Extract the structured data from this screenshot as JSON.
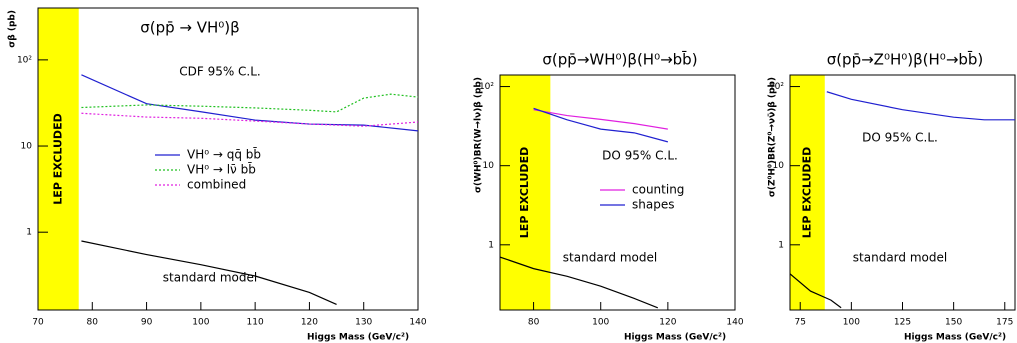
{
  "chart_data": [
    {
      "type": "line",
      "title": "σ(pp̄ → VH⁰)β",
      "y_label": "σβ (pb)",
      "x_label": "Higgs Mass (GeV/c²)",
      "annotations": [
        "CDF 95% C.L.",
        "standard model"
      ],
      "excluded_region": [
        70,
        77.5
      ],
      "excluded_label": "LEP EXCLUDED",
      "log_y": true,
      "xlim": [
        70,
        140
      ],
      "ylim": [
        0.125,
        400
      ],
      "xticks": [
        70,
        80,
        90,
        100,
        110,
        120,
        130,
        140
      ],
      "yticks": [
        1,
        10,
        {
          "value": 100,
          "label": "10²"
        }
      ],
      "series": [
        {
          "name": "VH⁰ → qq̄ bb̄",
          "color": "#2020d0",
          "dash": "solid",
          "x": [
            78,
            90,
            100,
            110,
            120,
            130,
            140
          ],
          "values": [
            67,
            31,
            25,
            20,
            18,
            17.5,
            15
          ]
        },
        {
          "name": "VH⁰ → lν̄ bb̄",
          "color": "#20c020",
          "dash": "dotted",
          "x": [
            78,
            90,
            100,
            110,
            120,
            125,
            130,
            135,
            140
          ],
          "values": [
            28,
            30,
            29,
            27.7,
            26,
            24.9,
            36,
            40,
            37
          ]
        },
        {
          "name": "combined",
          "color": "#e020e0",
          "dash": "dotted",
          "x": [
            78,
            90,
            100,
            110,
            120,
            130,
            140
          ],
          "values": [
            24,
            21.7,
            21,
            19.5,
            18,
            17,
            19
          ]
        },
        {
          "color": "#000000",
          "dash": "solid",
          "x": [
            78,
            90,
            100,
            110,
            120,
            125
          ],
          "values": [
            0.79,
            0.55,
            0.42,
            0.31,
            0.2,
            0.145
          ]
        }
      ]
    },
    {
      "type": "line",
      "title": "σ(pp̄→WH⁰)β(H⁰→bb̄)",
      "y_label": "σ(WH⁰)BR(W→lν)β (pb)",
      "x_label": "Higgs Mass (GeV/c²)",
      "annotations": [
        "DO 95% C.L.",
        "standard model"
      ],
      "excluded_region": [
        70,
        85
      ],
      "excluded_label": "LEP EXCLUDED",
      "log_y": true,
      "xlim": [
        70,
        140
      ],
      "ylim": [
        0.15,
        140
      ],
      "xticks": [
        80,
        100,
        120,
        140
      ],
      "yticks": [
        1,
        10,
        {
          "value": 100,
          "label": "10²"
        }
      ],
      "series": [
        {
          "name": "counting",
          "color": "#e020e0",
          "dash": "solid",
          "x": [
            80,
            90,
            100,
            110,
            120
          ],
          "values": [
            51,
            43,
            38.5,
            34,
            29
          ]
        },
        {
          "name": "shapes",
          "color": "#2020d0",
          "dash": "solid",
          "x": [
            80,
            90,
            100,
            110,
            120
          ],
          "values": [
            53,
            38,
            29,
            26,
            20
          ]
        },
        {
          "color": "#000000",
          "dash": "solid",
          "x": [
            70,
            80,
            90,
            100,
            110,
            117
          ],
          "values": [
            0.7,
            0.5,
            0.4,
            0.3,
            0.21,
            0.16
          ]
        }
      ]
    },
    {
      "type": "line",
      "title": "σ(pp̄→Z⁰H⁰)β(H⁰→bb̄)",
      "y_label": "σ(Z⁰H⁰)BR(Z⁰→νν̄)β (pb)",
      "x_label": "Higgs Mass (GeV/c²)",
      "annotations": [
        "DO 95% C.L.",
        "standard model"
      ],
      "excluded_region": [
        70,
        87
      ],
      "excluded_label": "LEP EXCLUDED",
      "log_y": true,
      "xlim": [
        70,
        180
      ],
      "ylim": [
        0.15,
        140
      ],
      "xticks": [
        75,
        100,
        125,
        150,
        175
      ],
      "yticks": [
        1,
        10,
        {
          "value": 100,
          "label": "10²"
        }
      ],
      "series": [
        {
          "color": "#2020d0",
          "dash": "solid",
          "x": [
            88,
            100,
            125,
            150,
            165,
            180
          ],
          "values": [
            86,
            69,
            51,
            41,
            38,
            38
          ]
        },
        {
          "color": "#000000",
          "dash": "solid",
          "x": [
            70,
            80,
            90,
            95
          ],
          "values": [
            0.43,
            0.26,
            0.2,
            0.16
          ]
        }
      ]
    }
  ]
}
